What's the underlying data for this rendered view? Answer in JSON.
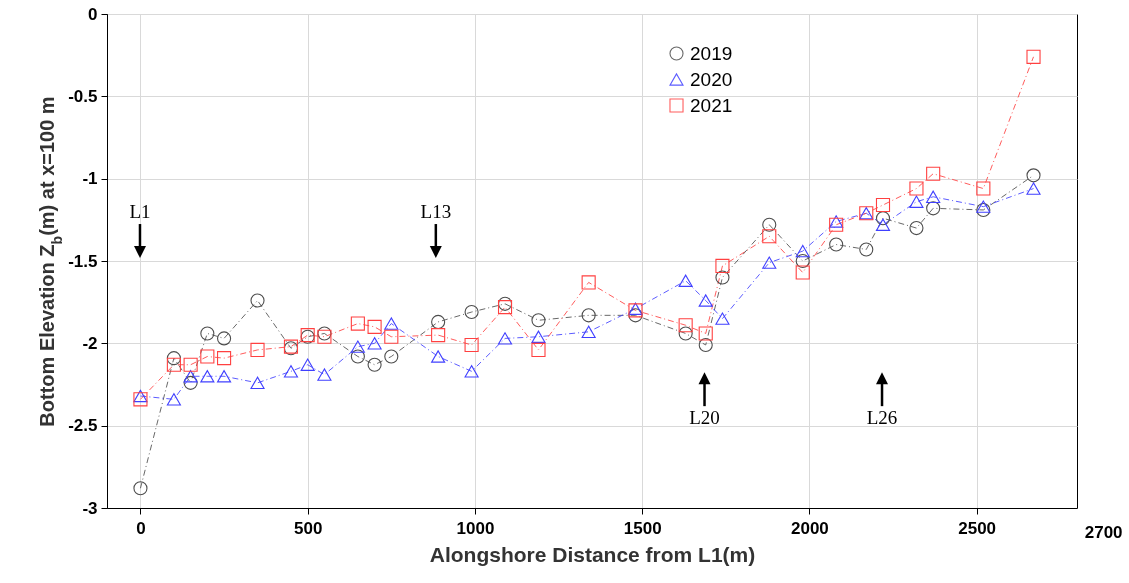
{
  "chart_data": {
    "type": "line",
    "xlabel": "Alongshore Distance from L1(m)",
    "ylabel": "Bottom Elevation Z$_{b}$(m) at x=100 m",
    "x": [
      0,
      100,
      150,
      200,
      250,
      350,
      450,
      500,
      550,
      650,
      700,
      750,
      890,
      990,
      1090,
      1190,
      1340,
      1480,
      1630,
      1690,
      1740,
      1880,
      1980,
      2080,
      2170,
      2220,
      2320,
      2370,
      2520,
      2670
    ],
    "series": [
      {
        "name": "2019",
        "color": "#4d4d4d",
        "marker": "circle",
        "values": [
          -2.88,
          -2.09,
          -2.24,
          -1.94,
          -1.97,
          -1.74,
          -2.03,
          -1.96,
          -1.94,
          -2.08,
          -2.13,
          -2.08,
          -1.87,
          -1.81,
          -1.76,
          -1.86,
          -1.83,
          -1.83,
          -1.94,
          -2.01,
          -1.6,
          -1.28,
          -1.5,
          -1.4,
          -1.43,
          -1.24,
          -1.3,
          -1.18,
          -1.19,
          -0.98
        ]
      },
      {
        "name": "2020",
        "color": "#4040ff",
        "marker": "triangle",
        "values": [
          -2.32,
          -2.34,
          -2.2,
          -2.2,
          -2.2,
          -2.24,
          -2.17,
          -2.13,
          -2.19,
          -2.02,
          -2.0,
          -1.88,
          -2.08,
          -2.17,
          -1.97,
          -1.96,
          -1.93,
          -1.79,
          -1.62,
          -1.74,
          -1.85,
          -1.51,
          -1.44,
          -1.26,
          -1.21,
          -1.28,
          -1.14,
          -1.11,
          -1.17,
          -1.06
        ]
      },
      {
        "name": "2021",
        "color": "#ff4040",
        "marker": "square",
        "values": [
          -2.34,
          -2.13,
          -2.13,
          -2.08,
          -2.09,
          -2.04,
          -2.02,
          -1.95,
          -1.96,
          -1.88,
          -1.9,
          -1.96,
          -1.95,
          -2.01,
          -1.78,
          -2.04,
          -1.63,
          -1.8,
          -1.89,
          -1.94,
          -1.53,
          -1.35,
          -1.57,
          -1.28,
          -1.21,
          -1.16,
          -1.06,
          -0.97,
          -1.06,
          -0.26
        ]
      }
    ],
    "line_style": "dashed",
    "xlim": [
      -100,
      2800
    ],
    "xticks": [
      0,
      500,
      1000,
      1500,
      2000,
      2500
    ],
    "ylim": [
      -3,
      0
    ],
    "yticks": [
      -3,
      -2.5,
      -2,
      -1.5,
      -1,
      -0.5,
      0
    ],
    "grid": true,
    "legend": "top",
    "annotations": [
      "L1",
      "L13",
      "L20",
      "L26",
      "2700"
    ]
  }
}
